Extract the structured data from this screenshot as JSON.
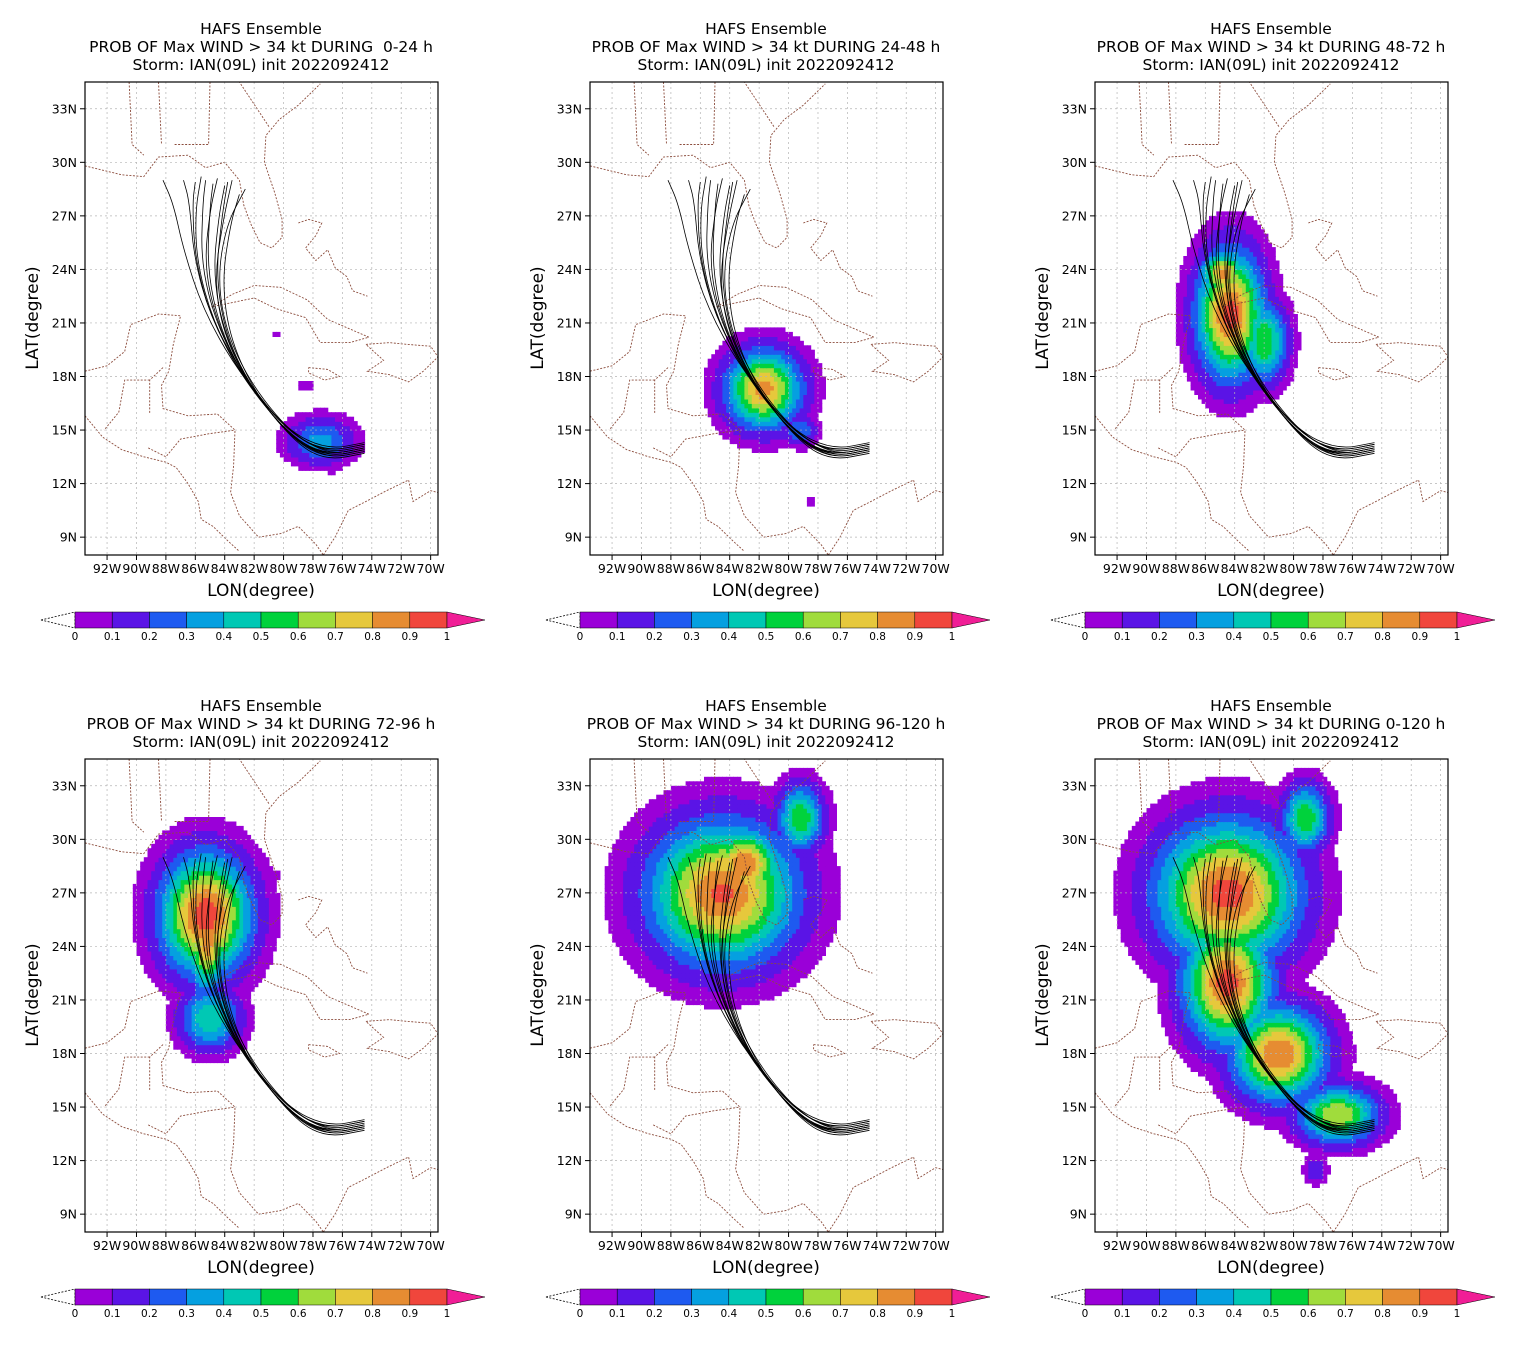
{
  "chart_data": [
    {
      "type": "heatmap",
      "title": "HAFS Ensemble",
      "subtitle": "PROB OF Max WIND > 34 kt DURING  0-24 h",
      "storm": "Storm: IAN(09L) init 2022092412",
      "xlabel": "LON(degree)",
      "ylabel": "LAT(degree)",
      "xlim": [
        -93.5,
        -69.5
      ],
      "ylim": [
        8,
        34.5
      ],
      "x_ticks": [
        "92W",
        "90W",
        "88W",
        "86W",
        "84W",
        "82W",
        "80W",
        "78W",
        "76W",
        "74W",
        "72W",
        "70W"
      ],
      "y_ticks": [
        "9N",
        "12N",
        "15N",
        "18N",
        "21N",
        "24N",
        "27N",
        "30N",
        "33N"
      ],
      "colorbar": {
        "levels": [
          0,
          0.1,
          0.2,
          0.3,
          0.4,
          0.5,
          0.6,
          0.7,
          0.8,
          0.9,
          1
        ]
      },
      "prob_blobs": [
        {
          "lon": -77.5,
          "lat": 14.4,
          "rlon": 2.3,
          "rlat": 1.3,
          "peak": 0.35
        },
        {
          "lon": -78.5,
          "lat": 17.5,
          "rlon": 0.8,
          "rlat": 0.5,
          "peak": 0.08
        },
        {
          "lon": -80.5,
          "lat": 20.4,
          "rlon": 0.3,
          "rlat": 0.3,
          "peak": 0.05
        },
        {
          "lon": -76.8,
          "lat": 12.6,
          "rlon": 0.6,
          "rlat": 0.4,
          "peak": 0.05
        }
      ]
    },
    {
      "type": "heatmap",
      "title": "HAFS Ensemble",
      "subtitle": "PROB OF Max WIND > 34 kt DURING 24-48 h",
      "storm": "Storm: IAN(09L) init 2022092412",
      "xlabel": "LON(degree)",
      "ylabel": "LAT(degree)",
      "xlim": [
        -93.5,
        -69.5
      ],
      "ylim": [
        8,
        34.5
      ],
      "x_ticks": [
        "92W",
        "90W",
        "88W",
        "86W",
        "84W",
        "82W",
        "80W",
        "78W",
        "76W",
        "74W",
        "72W",
        "70W"
      ],
      "y_ticks": [
        "9N",
        "12N",
        "15N",
        "18N",
        "21N",
        "24N",
        "27N",
        "30N",
        "33N"
      ],
      "colorbar": {
        "levels": [
          0,
          0.1,
          0.2,
          0.3,
          0.4,
          0.5,
          0.6,
          0.7,
          0.8,
          0.9,
          1
        ]
      },
      "prob_blobs": [
        {
          "lon": -81.7,
          "lat": 17.3,
          "rlon": 2.6,
          "rlat": 2.2,
          "peak": 0.85
        },
        {
          "lon": -79.2,
          "lat": 15.0,
          "rlon": 1.2,
          "rlat": 0.9,
          "peak": 0.3
        },
        {
          "lon": -78.5,
          "lat": 11.0,
          "rlon": 0.5,
          "rlat": 0.6,
          "peak": 0.05
        },
        {
          "lon": -79.3,
          "lat": 20.2,
          "rlon": 0.4,
          "rlat": 0.3,
          "peak": 0.05
        }
      ]
    },
    {
      "type": "heatmap",
      "title": "HAFS Ensemble",
      "subtitle": "PROB OF Max WIND > 34 kt DURING 48-72 h",
      "storm": "Storm: IAN(09L) init 2022092412",
      "xlabel": "LON(degree)",
      "ylabel": "LAT(degree)",
      "xlim": [
        -93.5,
        -69.5
      ],
      "ylim": [
        8,
        34.5
      ],
      "x_ticks": [
        "92W",
        "90W",
        "88W",
        "86W",
        "84W",
        "82W",
        "80W",
        "78W",
        "76W",
        "74W",
        "72W",
        "70W"
      ],
      "y_ticks": [
        "9N",
        "12N",
        "15N",
        "18N",
        "21N",
        "24N",
        "27N",
        "30N",
        "33N"
      ],
      "colorbar": {
        "levels": [
          0,
          0.1,
          0.2,
          0.3,
          0.4,
          0.5,
          0.6,
          0.7,
          0.8,
          0.9,
          1
        ]
      },
      "prob_blobs": [
        {
          "lon": -84.3,
          "lat": 21.5,
          "rlon": 2.3,
          "rlat": 3.6,
          "peak": 0.95
        },
        {
          "lon": -82.0,
          "lat": 20.0,
          "rlon": 1.6,
          "rlat": 2.3,
          "peak": 0.6
        },
        {
          "lon": -84.8,
          "lat": 23.8,
          "rlon": 1.5,
          "rlat": 1.2,
          "peak": 0.85
        },
        {
          "lon": -78.0,
          "lat": 24.3,
          "rlon": 0.3,
          "rlat": 0.3,
          "peak": 0.05
        }
      ]
    },
    {
      "type": "heatmap",
      "title": "HAFS Ensemble",
      "subtitle": "PROB OF Max WIND > 34 kt DURING 72-96 h",
      "storm": "Storm: IAN(09L) init 2022092412",
      "xlabel": "LON(degree)",
      "ylabel": "LAT(degree)",
      "xlim": [
        -93.5,
        -69.5
      ],
      "ylim": [
        8,
        34.5
      ],
      "x_ticks": [
        "92W",
        "90W",
        "88W",
        "86W",
        "84W",
        "82W",
        "80W",
        "78W",
        "76W",
        "74W",
        "72W",
        "70W"
      ],
      "y_ticks": [
        "9N",
        "12N",
        "15N",
        "18N",
        "21N",
        "24N",
        "27N",
        "30N",
        "33N"
      ],
      "colorbar": {
        "levels": [
          0,
          0.1,
          0.2,
          0.3,
          0.4,
          0.5,
          0.6,
          0.7,
          0.8,
          0.9,
          1
        ]
      },
      "prob_blobs": [
        {
          "lon": -85.3,
          "lat": 25.8,
          "rlon": 3.1,
          "rlat": 3.4,
          "peak": 0.97
        },
        {
          "lon": -85.0,
          "lat": 20.0,
          "rlon": 2.1,
          "rlat": 1.8,
          "peak": 0.5
        },
        {
          "lon": -85.2,
          "lat": 24.5,
          "rlon": 1.3,
          "rlat": 3.0,
          "peak": 0.9
        },
        {
          "lon": -80.5,
          "lat": 28.0,
          "rlon": 0.5,
          "rlat": 0.5,
          "peak": 0.05
        }
      ]
    },
    {
      "type": "heatmap",
      "title": "HAFS Ensemble",
      "subtitle": "PROB OF Max WIND > 34 kt DURING 96-120 h",
      "storm": "Storm: IAN(09L) init 2022092412",
      "xlabel": "LON(degree)",
      "ylabel": "LAT(degree)",
      "xlim": [
        -93.5,
        -69.5
      ],
      "ylim": [
        8,
        34.5
      ],
      "x_ticks": [
        "92W",
        "90W",
        "88W",
        "86W",
        "84W",
        "82W",
        "80W",
        "78W",
        "76W",
        "74W",
        "72W",
        "70W"
      ],
      "y_ticks": [
        "9N",
        "12N",
        "15N",
        "18N",
        "21N",
        "24N",
        "27N",
        "30N",
        "33N"
      ],
      "colorbar": {
        "levels": [
          0,
          0.1,
          0.2,
          0.3,
          0.4,
          0.5,
          0.6,
          0.7,
          0.8,
          0.9,
          1
        ]
      },
      "prob_blobs": [
        {
          "lon": -84.5,
          "lat": 27.0,
          "rlon": 5.0,
          "rlat": 4.0,
          "peak": 0.92
        },
        {
          "lon": -83.0,
          "lat": 28.6,
          "rlon": 2.5,
          "rlat": 2.0,
          "peak": 0.9
        },
        {
          "lon": -79.2,
          "lat": 31.2,
          "rlon": 1.6,
          "rlat": 1.9,
          "peak": 0.6
        }
      ]
    },
    {
      "type": "heatmap",
      "title": "HAFS Ensemble",
      "subtitle": "PROB OF Max WIND > 34 kt DURING 0-120 h",
      "storm": "Storm: IAN(09L) init 2022092412",
      "xlabel": "LON(degree)",
      "ylabel": "LAT(degree)",
      "xlim": [
        -93.5,
        -69.5
      ],
      "ylim": [
        8,
        34.5
      ],
      "x_ticks": [
        "92W",
        "90W",
        "88W",
        "86W",
        "84W",
        "82W",
        "80W",
        "78W",
        "76W",
        "74W",
        "72W",
        "70W"
      ],
      "y_ticks": [
        "9N",
        "12N",
        "15N",
        "18N",
        "21N",
        "24N",
        "27N",
        "30N",
        "33N"
      ],
      "colorbar": {
        "levels": [
          0,
          0.1,
          0.2,
          0.3,
          0.4,
          0.5,
          0.6,
          0.7,
          0.8,
          0.9,
          1
        ]
      },
      "prob_blobs": [
        {
          "lon": -84.5,
          "lat": 27.0,
          "rlon": 4.8,
          "rlat": 4.0,
          "peak": 0.95
        },
        {
          "lon": -84.5,
          "lat": 22.0,
          "rlon": 3.0,
          "rlat": 3.5,
          "peak": 0.95
        },
        {
          "lon": -81.0,
          "lat": 18.0,
          "rlon": 3.2,
          "rlat": 2.6,
          "peak": 0.9
        },
        {
          "lon": -77.0,
          "lat": 14.6,
          "rlon": 2.8,
          "rlat": 1.6,
          "peak": 0.7
        },
        {
          "lon": -79.2,
          "lat": 31.2,
          "rlon": 1.6,
          "rlat": 1.9,
          "peak": 0.6
        },
        {
          "lon": -78.5,
          "lat": 11.5,
          "rlon": 0.8,
          "rlat": 0.8,
          "peak": 0.2
        }
      ]
    }
  ],
  "tracks": [
    [
      [
        -74.5,
        14.0
      ],
      [
        -77,
        13.6
      ],
      [
        -79.5,
        14.6
      ],
      [
        -82.4,
        17.5
      ],
      [
        -84.3,
        20.6
      ],
      [
        -85.2,
        24.0
      ],
      [
        -85.0,
        27.5
      ],
      [
        -84.8,
        28.8
      ]
    ],
    [
      [
        -74.5,
        14.2
      ],
      [
        -77,
        13.8
      ],
      [
        -79.6,
        14.8
      ],
      [
        -82.6,
        17.8
      ],
      [
        -84.6,
        21.0
      ],
      [
        -85.6,
        24.3
      ],
      [
        -85.5,
        27.6
      ],
      [
        -85.3,
        29.0
      ]
    ],
    [
      [
        -74.5,
        13.8
      ],
      [
        -77,
        13.4
      ],
      [
        -79.3,
        14.4
      ],
      [
        -82.1,
        17.2
      ],
      [
        -84.0,
        20.3
      ],
      [
        -84.8,
        23.7
      ],
      [
        -84.4,
        27.0
      ],
      [
        -84.0,
        28.7
      ]
    ],
    [
      [
        -74.5,
        14.3
      ],
      [
        -77,
        13.9
      ],
      [
        -79.8,
        15.0
      ],
      [
        -82.9,
        18.1
      ],
      [
        -85.0,
        21.4
      ],
      [
        -86.1,
        24.7
      ],
      [
        -86.4,
        27.8
      ],
      [
        -86.8,
        29.0
      ]
    ],
    [
      [
        -74.5,
        13.7
      ],
      [
        -77,
        13.3
      ],
      [
        -79.1,
        14.2
      ],
      [
        -81.8,
        16.9
      ],
      [
        -83.6,
        20.0
      ],
      [
        -84.2,
        23.3
      ],
      [
        -83.6,
        26.6
      ],
      [
        -83.0,
        28.2
      ]
    ],
    [
      [
        -74.5,
        14.1
      ],
      [
        -77,
        13.7
      ],
      [
        -79.7,
        14.9
      ],
      [
        -82.7,
        18.0
      ],
      [
        -84.9,
        21.2
      ],
      [
        -86.0,
        24.5
      ],
      [
        -86.2,
        27.6
      ],
      [
        -86.0,
        28.9
      ]
    ],
    [
      [
        -74.5,
        13.9
      ],
      [
        -77,
        13.5
      ],
      [
        -79.4,
        14.5
      ],
      [
        -82.2,
        17.3
      ],
      [
        -84.1,
        20.4
      ],
      [
        -84.7,
        23.5
      ],
      [
        -84.1,
        26.8
      ],
      [
        -83.5,
        29.0
      ]
    ],
    [
      [
        -74.5,
        14.0
      ],
      [
        -77,
        13.6
      ],
      [
        -79.9,
        15.1
      ],
      [
        -83.2,
        18.4
      ],
      [
        -85.5,
        21.8
      ],
      [
        -86.8,
        25.1
      ],
      [
        -87.5,
        27.7
      ],
      [
        -88.2,
        29.0
      ]
    ],
    [
      [
        -74.5,
        13.8
      ],
      [
        -77,
        13.4
      ],
      [
        -79.5,
        14.6
      ],
      [
        -82.5,
        17.6
      ],
      [
        -84.5,
        20.9
      ],
      [
        -85.4,
        24.2
      ],
      [
        -85.0,
        27.3
      ],
      [
        -84.5,
        29.1
      ]
    ],
    [
      [
        -74.5,
        14.2
      ],
      [
        -77,
        13.8
      ],
      [
        -79.2,
        14.6
      ],
      [
        -81.9,
        17.2
      ],
      [
        -83.8,
        20.2
      ],
      [
        -84.5,
        23.4
      ],
      [
        -83.9,
        26.5
      ],
      [
        -82.6,
        28.5
      ]
    ],
    [
      [
        -74.5,
        13.9
      ],
      [
        -77,
        13.5
      ],
      [
        -79.6,
        14.7
      ],
      [
        -82.8,
        17.9
      ],
      [
        -84.8,
        21.1
      ],
      [
        -85.9,
        24.4
      ],
      [
        -86.0,
        27.3
      ],
      [
        -85.6,
        29.2
      ]
    ],
    [
      [
        -74.5,
        14.0
      ],
      [
        -77,
        13.6
      ],
      [
        -79.3,
        14.4
      ],
      [
        -82.0,
        17.1
      ],
      [
        -83.9,
        20.2
      ],
      [
        -84.6,
        23.6
      ],
      [
        -84.2,
        26.9
      ],
      [
        -83.8,
        28.9
      ]
    ]
  ]
}
